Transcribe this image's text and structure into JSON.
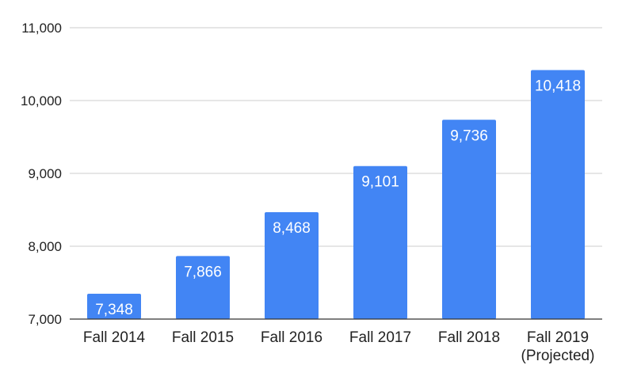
{
  "chart_data": {
    "type": "bar",
    "categories": [
      "Fall 2014",
      "Fall 2015",
      "Fall 2016",
      "Fall 2017",
      "Fall 2018",
      "Fall 2019|(Projected)"
    ],
    "values": [
      7348,
      7866,
      8468,
      9101,
      9736,
      10418
    ],
    "data_labels": [
      "7,348",
      "7,866",
      "8,468",
      "9,101",
      "9,736",
      "10,418"
    ],
    "title": "",
    "xlabel": "",
    "ylabel": "",
    "ylim": [
      7000,
      11000
    ],
    "yticks": [
      7000,
      8000,
      9000,
      10000,
      11000
    ],
    "ytick_labels": [
      "7,000",
      "8,000",
      "9,000",
      "10,000",
      "11,000"
    ],
    "grid": true,
    "legend": "none",
    "colors": {
      "bar": "#4285f4",
      "grid": "#cccccc",
      "axis": "#333333",
      "data_label": "#ffffff",
      "text": "#222222"
    }
  }
}
